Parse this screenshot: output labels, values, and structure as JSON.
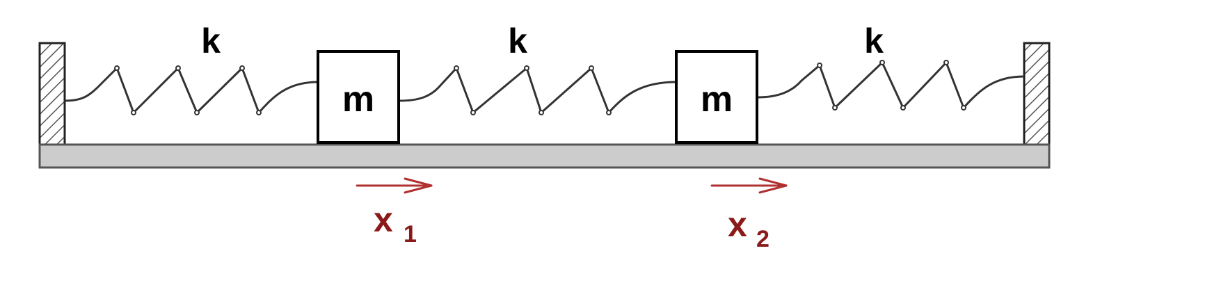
{
  "diagram": {
    "spring_labels": [
      "k",
      "k",
      "k"
    ],
    "mass_labels": [
      "m",
      "m"
    ],
    "displacements": [
      {
        "symbol": "x",
        "subscript": "1"
      },
      {
        "symbol": "x",
        "subscript": "2"
      }
    ]
  },
  "colors": {
    "ink": "#000000",
    "spring": "#333333",
    "floor_fill": "#cccccc",
    "floor_stroke": "#555555",
    "arrow": "#b03030",
    "label_red": "#8a1a1a"
  }
}
